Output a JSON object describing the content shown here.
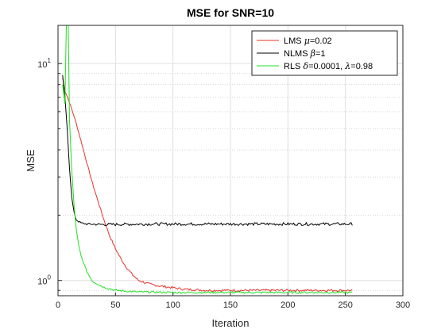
{
  "chart_data": {
    "type": "line",
    "title": "MSE for SNR=10",
    "xlabel": "Iteration",
    "ylabel": "MSE",
    "xlim": [
      0,
      300
    ],
    "ylim": [
      0.85,
      15
    ],
    "yscale": "log",
    "grid": true,
    "legend_position": "top-right",
    "x_ticks": [
      "0",
      "50",
      "100",
      "150",
      "200",
      "250",
      "300"
    ],
    "x_tick_values": [
      0,
      50,
      100,
      150,
      200,
      250,
      300
    ],
    "y_ticks": [
      {
        "base": "10",
        "exp": "0",
        "value": 1
      },
      {
        "base": "10",
        "exp": "1",
        "value": 10
      }
    ],
    "series": [
      {
        "name": "LMS μ=0.02",
        "legend_parts": [
          "LMS ",
          "μ",
          "=0.02"
        ],
        "color": "#e8332b",
        "points": [
          [
            4,
            8.6
          ],
          [
            6,
            7.5
          ],
          [
            10,
            6.6
          ],
          [
            15,
            5.5
          ],
          [
            20,
            4.4
          ],
          [
            25,
            3.5
          ],
          [
            30,
            2.8
          ],
          [
            35,
            2.3
          ],
          [
            40,
            1.9
          ],
          [
            45,
            1.6
          ],
          [
            50,
            1.4
          ],
          [
            55,
            1.25
          ],
          [
            60,
            1.14
          ],
          [
            65,
            1.06
          ],
          [
            70,
            1.0
          ],
          [
            80,
            0.96
          ],
          [
            90,
            0.94
          ],
          [
            100,
            0.925
          ],
          [
            110,
            0.91
          ],
          [
            120,
            0.905
          ],
          [
            130,
            0.9
          ],
          [
            150,
            0.9
          ],
          [
            170,
            0.9
          ],
          [
            200,
            0.9
          ],
          [
            230,
            0.9
          ],
          [
            256,
            0.9
          ]
        ],
        "noise": 0.012
      },
      {
        "name": "NLMS β=1",
        "legend_parts": [
          "NLMS ",
          "β",
          "=1"
        ],
        "color": "#000000",
        "points": [
          [
            4,
            8.8
          ],
          [
            6,
            7.0
          ],
          [
            8,
            5.0
          ],
          [
            10,
            3.3
          ],
          [
            12,
            2.4
          ],
          [
            14,
            2.05
          ],
          [
            16,
            1.9
          ],
          [
            20,
            1.84
          ],
          [
            25,
            1.82
          ],
          [
            40,
            1.81
          ],
          [
            80,
            1.82
          ],
          [
            120,
            1.82
          ],
          [
            160,
            1.82
          ],
          [
            200,
            1.82
          ],
          [
            256,
            1.82
          ]
        ],
        "noise": 0.015
      },
      {
        "name": "RLS δ=0.0001, λ=0.98",
        "legend_parts": [
          "RLS  ",
          "δ",
          "=0.0001, ",
          "λ",
          "=0.98"
        ],
        "color": "#1fe01f",
        "points": [
          [
            4,
            8.0
          ],
          [
            6,
            6.5
          ],
          [
            8,
            25
          ],
          [
            9,
            14
          ],
          [
            10,
            5.5
          ],
          [
            12,
            3.2
          ],
          [
            14,
            2.2
          ],
          [
            16,
            1.7
          ],
          [
            18,
            1.45
          ],
          [
            20,
            1.3
          ],
          [
            25,
            1.1
          ],
          [
            30,
            0.99
          ],
          [
            40,
            0.93
          ],
          [
            50,
            0.9
          ],
          [
            70,
            0.885
          ],
          [
            100,
            0.88
          ],
          [
            150,
            0.88
          ],
          [
            200,
            0.88
          ],
          [
            256,
            0.88
          ]
        ],
        "noise": 0.01
      }
    ]
  }
}
